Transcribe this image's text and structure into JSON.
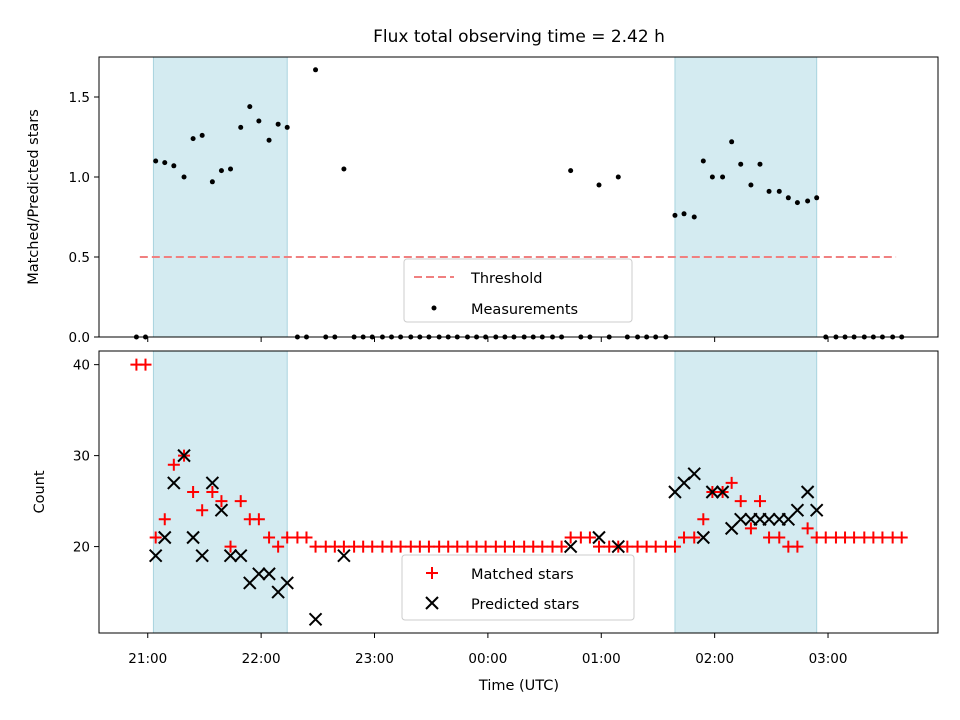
{
  "chart_data": {
    "type": "scatter",
    "title": "Flux total observing time = 2.42 h",
    "xlabel": "Time (UTC)",
    "x_tick_labels": [
      "21:00",
      "22:00",
      "23:00",
      "00:00",
      "01:00",
      "02:00",
      "03:00"
    ],
    "x_ticks_hours": [
      21,
      22,
      23,
      24,
      25,
      26,
      27
    ],
    "xlim_hours": [
      20.57,
      27.97
    ],
    "shaded_regions_hours": [
      [
        21.05,
        22.23
      ],
      [
        25.65,
        26.9
      ]
    ],
    "shade_color": "#d4ebf1",
    "panels": [
      {
        "ylabel": "Matched/Predicted stars",
        "ylim": [
          0,
          1.75
        ],
        "y_ticks": [
          0.0,
          0.5,
          1.0,
          1.5
        ],
        "y_tick_labels": [
          "0.0",
          "0.5",
          "1.0",
          "1.5"
        ],
        "threshold": {
          "name": "Threshold",
          "value": 0.5,
          "x_range_hours": [
            20.93,
            27.6
          ],
          "color": "#f08080"
        },
        "series": [
          {
            "name": "Measurements",
            "color": "#000000",
            "marker": "dot",
            "points": [
              [
                20.9,
                0
              ],
              [
                20.98,
                0
              ],
              [
                21.07,
                1.1
              ],
              [
                21.15,
                1.09
              ],
              [
                21.23,
                1.07
              ],
              [
                21.32,
                1.0
              ],
              [
                21.4,
                1.24
              ],
              [
                21.48,
                1.26
              ],
              [
                21.57,
                0.97
              ],
              [
                21.65,
                1.04
              ],
              [
                21.73,
                1.05
              ],
              [
                21.82,
                1.31
              ],
              [
                21.9,
                1.44
              ],
              [
                21.98,
                1.35
              ],
              [
                22.07,
                1.23
              ],
              [
                22.15,
                1.33
              ],
              [
                22.23,
                1.31
              ],
              [
                22.32,
                0
              ],
              [
                22.4,
                0
              ],
              [
                22.48,
                1.67
              ],
              [
                22.57,
                0
              ],
              [
                22.65,
                0
              ],
              [
                22.73,
                1.05
              ],
              [
                22.82,
                0
              ],
              [
                22.9,
                0
              ],
              [
                22.98,
                0
              ],
              [
                23.07,
                0
              ],
              [
                23.15,
                0
              ],
              [
                23.23,
                0
              ],
              [
                23.32,
                0
              ],
              [
                23.4,
                0
              ],
              [
                23.48,
                0
              ],
              [
                23.57,
                0
              ],
              [
                23.65,
                0
              ],
              [
                23.73,
                0
              ],
              [
                23.82,
                0
              ],
              [
                23.9,
                0
              ],
              [
                23.98,
                0
              ],
              [
                24.07,
                0
              ],
              [
                24.15,
                0
              ],
              [
                24.23,
                0
              ],
              [
                24.32,
                0
              ],
              [
                24.4,
                0
              ],
              [
                24.48,
                0
              ],
              [
                24.57,
                0
              ],
              [
                24.65,
                0
              ],
              [
                24.73,
                1.04
              ],
              [
                24.82,
                0
              ],
              [
                24.9,
                0
              ],
              [
                24.98,
                0.95
              ],
              [
                25.07,
                0
              ],
              [
                25.15,
                1.0
              ],
              [
                25.23,
                0
              ],
              [
                25.32,
                0
              ],
              [
                25.4,
                0
              ],
              [
                25.48,
                0
              ],
              [
                25.57,
                0
              ],
              [
                25.65,
                0.76
              ],
              [
                25.73,
                0.77
              ],
              [
                25.82,
                0.75
              ],
              [
                25.9,
                1.1
              ],
              [
                25.98,
                1.0
              ],
              [
                26.07,
                1.0
              ],
              [
                26.15,
                1.22
              ],
              [
                26.23,
                1.08
              ],
              [
                26.32,
                0.95
              ],
              [
                26.4,
                1.08
              ],
              [
                26.48,
                0.91
              ],
              [
                26.57,
                0.91
              ],
              [
                26.65,
                0.87
              ],
              [
                26.73,
                0.84
              ],
              [
                26.82,
                0.85
              ],
              [
                26.9,
                0.87
              ],
              [
                26.98,
                0
              ],
              [
                27.07,
                0
              ],
              [
                27.15,
                0
              ],
              [
                27.23,
                0
              ],
              [
                27.32,
                0
              ],
              [
                27.4,
                0
              ],
              [
                27.48,
                0
              ],
              [
                27.57,
                0
              ],
              [
                27.65,
                0
              ]
            ]
          }
        ]
      },
      {
        "ylabel": "Count",
        "ylim": [
          10.5,
          41.5
        ],
        "y_ticks": [
          20,
          30,
          40
        ],
        "y_tick_labels": [
          "20",
          "30",
          "40"
        ],
        "series": [
          {
            "name": "Matched stars",
            "color": "#ff0000",
            "marker": "plus",
            "points": [
              [
                20.9,
                40
              ],
              [
                20.98,
                40
              ],
              [
                21.07,
                21
              ],
              [
                21.15,
                23
              ],
              [
                21.23,
                29
              ],
              [
                21.32,
                30
              ],
              [
                21.4,
                26
              ],
              [
                21.48,
                24
              ],
              [
                21.57,
                26
              ],
              [
                21.65,
                25
              ],
              [
                21.73,
                20
              ],
              [
                21.82,
                25
              ],
              [
                21.9,
                23
              ],
              [
                21.98,
                23
              ],
              [
                22.07,
                21
              ],
              [
                22.15,
                20
              ],
              [
                22.23,
                21
              ],
              [
                22.32,
                21
              ],
              [
                22.4,
                21
              ],
              [
                22.48,
                20
              ],
              [
                22.57,
                20
              ],
              [
                22.65,
                20
              ],
              [
                22.73,
                20
              ],
              [
                22.82,
                20
              ],
              [
                22.9,
                20
              ],
              [
                22.98,
                20
              ],
              [
                23.07,
                20
              ],
              [
                23.15,
                20
              ],
              [
                23.23,
                20
              ],
              [
                23.32,
                20
              ],
              [
                23.4,
                20
              ],
              [
                23.48,
                20
              ],
              [
                23.57,
                20
              ],
              [
                23.65,
                20
              ],
              [
                23.73,
                20
              ],
              [
                23.82,
                20
              ],
              [
                23.9,
                20
              ],
              [
                23.98,
                20
              ],
              [
                24.07,
                20
              ],
              [
                24.15,
                20
              ],
              [
                24.23,
                20
              ],
              [
                24.32,
                20
              ],
              [
                24.4,
                20
              ],
              [
                24.48,
                20
              ],
              [
                24.57,
                20
              ],
              [
                24.65,
                20
              ],
              [
                24.73,
                21
              ],
              [
                24.82,
                21
              ],
              [
                24.9,
                21
              ],
              [
                24.98,
                20
              ],
              [
                25.07,
                20
              ],
              [
                25.15,
                20
              ],
              [
                25.23,
                20
              ],
              [
                25.32,
                20
              ],
              [
                25.4,
                20
              ],
              [
                25.48,
                20
              ],
              [
                25.57,
                20
              ],
              [
                25.65,
                20
              ],
              [
                25.73,
                21
              ],
              [
                25.82,
                21
              ],
              [
                25.9,
                23
              ],
              [
                25.98,
                26
              ],
              [
                26.07,
                26
              ],
              [
                26.15,
                27
              ],
              [
                26.23,
                25
              ],
              [
                26.32,
                22
              ],
              [
                26.4,
                25
              ],
              [
                26.48,
                21
              ],
              [
                26.57,
                21
              ],
              [
                26.65,
                20
              ],
              [
                26.73,
                20
              ],
              [
                26.82,
                22
              ],
              [
                26.9,
                21
              ],
              [
                26.98,
                21
              ],
              [
                27.07,
                21
              ],
              [
                27.15,
                21
              ],
              [
                27.23,
                21
              ],
              [
                27.32,
                21
              ],
              [
                27.4,
                21
              ],
              [
                27.48,
                21
              ],
              [
                27.57,
                21
              ],
              [
                27.65,
                21
              ]
            ]
          },
          {
            "name": "Predicted stars",
            "color": "#000000",
            "marker": "x",
            "points": [
              [
                21.07,
                19
              ],
              [
                21.15,
                21
              ],
              [
                21.23,
                27
              ],
              [
                21.32,
                30
              ],
              [
                21.4,
                21
              ],
              [
                21.48,
                19
              ],
              [
                21.57,
                27
              ],
              [
                21.65,
                24
              ],
              [
                21.73,
                19
              ],
              [
                21.82,
                19
              ],
              [
                21.9,
                16
              ],
              [
                21.98,
                17
              ],
              [
                22.07,
                17
              ],
              [
                22.15,
                15
              ],
              [
                22.23,
                16
              ],
              [
                22.48,
                12
              ],
              [
                22.73,
                19
              ],
              [
                24.73,
                20
              ],
              [
                24.98,
                21
              ],
              [
                25.15,
                20
              ],
              [
                25.65,
                26
              ],
              [
                25.73,
                27
              ],
              [
                25.82,
                28
              ],
              [
                25.9,
                21
              ],
              [
                25.98,
                26
              ],
              [
                26.07,
                26
              ],
              [
                26.15,
                22
              ],
              [
                26.23,
                23
              ],
              [
                26.32,
                23
              ],
              [
                26.4,
                23
              ],
              [
                26.48,
                23
              ],
              [
                26.57,
                23
              ],
              [
                26.65,
                23
              ],
              [
                26.73,
                24
              ],
              [
                26.82,
                26
              ],
              [
                26.9,
                24
              ]
            ]
          }
        ]
      }
    ],
    "legends": [
      {
        "panel": 0,
        "placement": "lower-center",
        "entries": [
          "Threshold",
          "Measurements"
        ]
      },
      {
        "panel": 1,
        "placement": "lower-center",
        "entries": [
          "Matched stars",
          "Predicted stars"
        ]
      }
    ],
    "grid": false
  }
}
